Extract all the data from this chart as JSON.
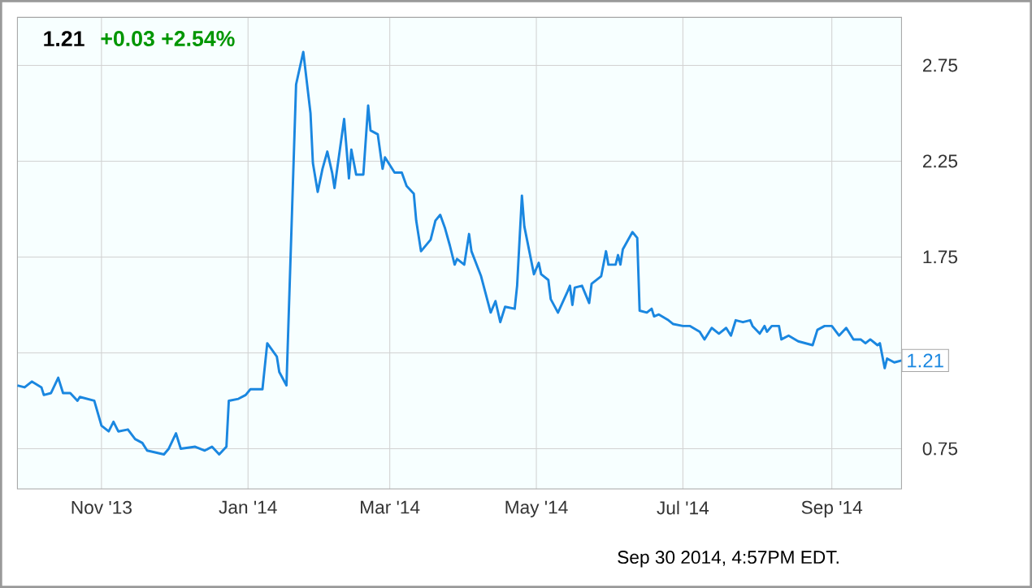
{
  "chart_data": {
    "type": "line",
    "title": "1.21",
    "subtitle": "+0.03 +2.54%",
    "color": "#1a87e0",
    "marker": "none",
    "grid": true,
    "x": [
      "2013-09-27",
      "2013-09-30",
      "2013-10-03",
      "2013-10-07",
      "2013-10-08",
      "2013-10-11",
      "2013-10-14",
      "2013-10-16",
      "2013-10-19",
      "2013-10-22",
      "2013-10-23",
      "2013-10-29",
      "2013-11-01",
      "2013-11-04",
      "2013-11-06",
      "2013-11-08",
      "2013-11-12",
      "2013-11-15",
      "2013-11-18",
      "2013-11-20",
      "2013-11-27",
      "2013-11-29",
      "2013-12-02",
      "2013-12-04",
      "2013-12-10",
      "2013-12-14",
      "2013-12-17",
      "2013-12-20",
      "2013-12-23",
      "2013-12-24",
      "2013-12-28",
      "2013-12-31",
      "2014-01-02",
      "2014-01-07",
      "2014-01-09",
      "2014-01-13",
      "2014-01-14",
      "2014-01-17",
      "2014-01-21",
      "2014-01-24",
      "2014-01-27",
      "2014-01-28",
      "2014-01-30",
      "2014-02-01",
      "2014-02-03",
      "2014-02-05",
      "2014-02-06",
      "2014-02-10",
      "2014-02-12",
      "2014-02-13",
      "2014-02-15",
      "2014-02-18",
      "2014-02-20",
      "2014-02-21",
      "2014-02-24",
      "2014-02-26",
      "2014-02-27",
      "2014-03-03",
      "2014-03-06",
      "2014-03-08",
      "2014-03-11",
      "2014-03-12",
      "2014-03-14",
      "2014-03-18",
      "2014-03-20",
      "2014-03-22",
      "2014-03-24",
      "2014-03-26",
      "2014-03-28",
      "2014-03-29",
      "2014-04-01",
      "2014-04-03",
      "2014-04-04",
      "2014-04-08",
      "2014-04-12",
      "2014-04-14",
      "2014-04-16",
      "2014-04-18",
      "2014-04-22",
      "2014-04-23",
      "2014-04-25",
      "2014-04-26",
      "2014-04-30",
      "2014-05-02",
      "2014-05-03",
      "2014-05-06",
      "2014-05-07",
      "2014-05-10",
      "2014-05-14",
      "2014-05-15",
      "2014-05-16",
      "2014-05-17",
      "2014-05-20",
      "2014-05-23",
      "2014-05-24",
      "2014-05-28",
      "2014-05-30",
      "2014-05-31",
      "2014-06-03",
      "2014-06-04",
      "2014-06-05",
      "2014-06-06",
      "2014-06-10",
      "2014-06-12",
      "2014-06-13",
      "2014-06-16",
      "2014-06-18",
      "2014-06-19",
      "2014-06-21",
      "2014-06-25",
      "2014-06-27",
      "2014-07-01",
      "2014-07-04",
      "2014-07-08",
      "2014-07-10",
      "2014-07-13",
      "2014-07-16",
      "2014-07-19",
      "2014-07-21",
      "2014-07-23",
      "2014-07-26",
      "2014-07-29",
      "2014-07-30",
      "2014-08-02",
      "2014-08-04",
      "2014-08-05",
      "2014-08-07",
      "2014-08-10",
      "2014-08-11",
      "2014-08-14",
      "2014-08-18",
      "2014-08-24",
      "2014-08-26",
      "2014-08-29",
      "2014-09-01",
      "2014-09-04",
      "2014-09-07",
      "2014-09-10",
      "2014-09-13",
      "2014-09-15",
      "2014-09-17",
      "2014-09-20",
      "2014-09-21",
      "2014-09-23",
      "2014-09-24",
      "2014-09-27",
      "2014-09-30"
    ],
    "values": [
      1.08,
      1.07,
      1.1,
      1.07,
      1.03,
      1.04,
      1.12,
      1.04,
      1.04,
      1.0,
      1.02,
      1.0,
      0.87,
      0.84,
      0.89,
      0.84,
      0.85,
      0.8,
      0.78,
      0.74,
      0.72,
      0.75,
      0.83,
      0.75,
      0.76,
      0.74,
      0.76,
      0.72,
      0.76,
      1.0,
      1.01,
      1.03,
      1.06,
      1.06,
      1.3,
      1.23,
      1.15,
      1.08,
      2.65,
      2.82,
      2.5,
      2.24,
      2.09,
      2.21,
      2.3,
      2.19,
      2.11,
      2.47,
      2.16,
      2.31,
      2.18,
      2.18,
      2.54,
      2.41,
      2.39,
      2.21,
      2.27,
      2.19,
      2.19,
      2.12,
      2.08,
      1.94,
      1.78,
      1.84,
      1.94,
      1.97,
      1.9,
      1.81,
      1.71,
      1.74,
      1.71,
      1.87,
      1.78,
      1.65,
      1.46,
      1.52,
      1.41,
      1.49,
      1.48,
      1.6,
      2.07,
      1.91,
      1.66,
      1.72,
      1.66,
      1.63,
      1.53,
      1.46,
      1.57,
      1.6,
      1.5,
      1.59,
      1.6,
      1.51,
      1.61,
      1.65,
      1.78,
      1.71,
      1.71,
      1.76,
      1.71,
      1.79,
      1.88,
      1.85,
      1.47,
      1.46,
      1.48,
      1.44,
      1.45,
      1.42,
      1.4,
      1.39,
      1.39,
      1.36,
      1.32,
      1.38,
      1.35,
      1.38,
      1.34,
      1.42,
      1.41,
      1.42,
      1.39,
      1.35,
      1.39,
      1.36,
      1.39,
      1.39,
      1.32,
      1.34,
      1.31,
      1.29,
      1.37,
      1.39,
      1.39,
      1.34,
      1.38,
      1.32,
      1.32,
      1.3,
      1.32,
      1.29,
      1.3,
      1.17,
      1.22,
      1.2,
      1.21
    ],
    "xlim": [
      "2013-09-27",
      "2014-09-30"
    ],
    "xticks": [
      {
        "value": "2013-11-01",
        "label": "Nov '13"
      },
      {
        "value": "2014-01-01",
        "label": "Jan '14"
      },
      {
        "value": "2014-03-01",
        "label": "Mar '14"
      },
      {
        "value": "2014-05-01",
        "label": "May '14"
      },
      {
        "value": "2014-07-01",
        "label": "Jul '14"
      },
      {
        "value": "2014-09-01",
        "label": "Sep '14"
      }
    ],
    "ylim": [
      0.54,
      3.0
    ],
    "yticks": [
      0.75,
      {
        "value": 1.25,
        "label": null
      },
      1.75,
      2.25,
      2.75
    ],
    "annotations": [
      {
        "text": "1.21",
        "x": "2014-09-30",
        "y": 1.21
      },
      "Sep 30 2014, 4:57PM EDT."
    ]
  }
}
